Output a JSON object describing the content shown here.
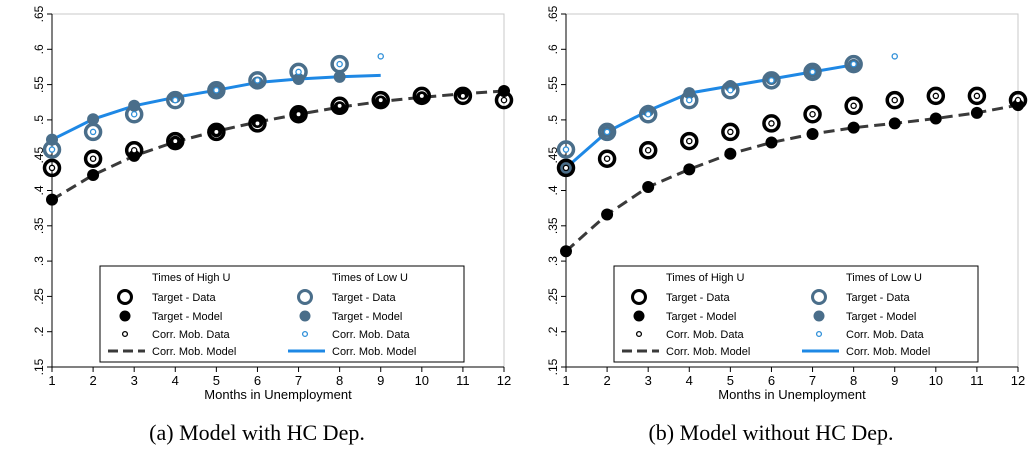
{
  "chart_data": [
    {
      "type": "line",
      "caption": "(a) Model with HC Dep.",
      "xlabel": "Months in Unemployment",
      "x_ticks": [
        "1",
        "2",
        "3",
        "4",
        "5",
        "6",
        "7",
        "8",
        "9",
        "10",
        "11",
        "12"
      ],
      "y_ticks": [
        ".15",
        ".2",
        ".25",
        ".3",
        ".35",
        ".4",
        ".45",
        ".5",
        ".55",
        ".6",
        ".65"
      ],
      "xlim": [
        1,
        12
      ],
      "ylim": [
        0.15,
        0.65
      ],
      "legend_position": "bottom-center",
      "legend": {
        "group_high": "Times of High U",
        "group_low": "Times of Low U",
        "high_target_data": "Target - Data",
        "high_target_model": "Target - Model",
        "high_corr_data": "Corr. Mob. Data",
        "high_corr_model": "Corr. Mob. Model",
        "low_target_data": "Target - Data",
        "low_target_model": "Target - Model",
        "low_corr_data": "Corr. Mob. Data",
        "low_corr_model": "Corr. Mob. Model"
      },
      "colors": {
        "high": "#000000",
        "high_line": "#3a3a3a",
        "low": "#4a6e8a",
        "low_corr": "#2f8fd8",
        "low_line": "#1e88e5"
      },
      "high": {
        "target_data": {
          "x": [
            1,
            2,
            3,
            4,
            5,
            6,
            7,
            8,
            9,
            10,
            11,
            12
          ],
          "y": [
            0.432,
            0.445,
            0.457,
            0.47,
            0.483,
            0.495,
            0.508,
            0.52,
            0.528,
            0.534,
            0.534,
            0.528
          ]
        },
        "target_model": {
          "x": [
            1,
            2,
            3,
            4,
            5,
            6,
            7,
            8,
            9,
            10,
            11,
            12
          ],
          "y": [
            0.387,
            0.422,
            0.449,
            0.469,
            0.484,
            0.497,
            0.508,
            0.518,
            0.526,
            0.532,
            0.537,
            0.541
          ]
        },
        "corr_data": {
          "x": [
            1,
            2,
            3,
            4,
            5,
            6,
            7,
            8,
            9,
            10,
            11,
            12
          ],
          "y": [
            0.432,
            0.445,
            0.457,
            0.47,
            0.483,
            0.495,
            0.508,
            0.52,
            0.528,
            0.534,
            0.534,
            0.528
          ]
        },
        "corr_model": {
          "x": [
            1,
            2,
            3,
            4,
            5,
            6,
            7,
            8,
            9,
            10,
            11,
            12
          ],
          "y": [
            0.387,
            0.422,
            0.449,
            0.469,
            0.484,
            0.497,
            0.508,
            0.518,
            0.526,
            0.532,
            0.537,
            0.541
          ]
        }
      },
      "low": {
        "target_data": {
          "x": [
            1,
            2,
            3,
            4,
            5,
            6,
            7,
            8
          ],
          "y": [
            0.458,
            0.483,
            0.508,
            0.528,
            0.542,
            0.556,
            0.568,
            0.579
          ]
        },
        "target_model": {
          "x": [
            1,
            2,
            3,
            4,
            5,
            6,
            7,
            8
          ],
          "y": [
            0.472,
            0.501,
            0.52,
            0.532,
            0.542,
            0.553,
            0.558,
            0.561
          ]
        },
        "corr_data": {
          "x": [
            1,
            2,
            3,
            4,
            5,
            6,
            7,
            8,
            9
          ],
          "y": [
            0.458,
            0.483,
            0.508,
            0.528,
            0.542,
            0.556,
            0.568,
            0.579,
            0.59
          ]
        },
        "corr_model": {
          "x": [
            1,
            2,
            3,
            4,
            5,
            6,
            7,
            8,
            9
          ],
          "y": [
            0.472,
            0.501,
            0.52,
            0.532,
            0.542,
            0.553,
            0.558,
            0.561,
            0.563
          ]
        }
      }
    },
    {
      "type": "line",
      "caption": "(b) Model without HC Dep.",
      "xlabel": "Months in Unemployment",
      "x_ticks": [
        "1",
        "2",
        "3",
        "4",
        "5",
        "6",
        "7",
        "8",
        "9",
        "10",
        "11",
        "12"
      ],
      "y_ticks": [
        ".15",
        ".2",
        ".25",
        ".3",
        ".35",
        ".4",
        ".45",
        ".5",
        ".55",
        ".6",
        ".65"
      ],
      "xlim": [
        1,
        12
      ],
      "ylim": [
        0.15,
        0.65
      ],
      "legend_position": "bottom-center",
      "legend": {
        "group_high": "Times of High U",
        "group_low": "Times of Low U",
        "high_target_data": "Target - Data",
        "high_target_model": "Target - Model",
        "high_corr_data": "Corr. Mob. Data",
        "high_corr_model": "Corr. Mob. Model",
        "low_target_data": "Target - Data",
        "low_target_model": "Target - Model",
        "low_corr_data": "Corr. Mob. Data",
        "low_corr_model": "Corr. Mob. Model"
      },
      "colors": {
        "high": "#000000",
        "high_line": "#3a3a3a",
        "low": "#4a6e8a",
        "low_corr": "#2f8fd8",
        "low_line": "#1e88e5"
      },
      "high": {
        "target_data": {
          "x": [
            1,
            2,
            3,
            4,
            5,
            6,
            7,
            8,
            9,
            10,
            11,
            12
          ],
          "y": [
            0.432,
            0.445,
            0.457,
            0.47,
            0.483,
            0.495,
            0.508,
            0.52,
            0.528,
            0.534,
            0.534,
            0.528
          ]
        },
        "target_model": {
          "x": [
            1,
            2,
            3,
            4,
            5,
            6,
            7,
            8,
            9,
            10,
            11,
            12
          ],
          "y": [
            0.314,
            0.366,
            0.405,
            0.43,
            0.452,
            0.468,
            0.48,
            0.489,
            0.495,
            0.502,
            0.51,
            0.521
          ]
        },
        "corr_data": {
          "x": [
            1,
            2,
            3,
            4,
            5,
            6,
            7,
            8,
            9,
            10,
            11,
            12
          ],
          "y": [
            0.432,
            0.445,
            0.457,
            0.47,
            0.483,
            0.495,
            0.508,
            0.52,
            0.528,
            0.534,
            0.534,
            0.528
          ]
        },
        "corr_model": {
          "x": [
            1,
            2,
            3,
            4,
            5,
            6,
            7,
            8,
            9,
            10,
            11,
            12
          ],
          "y": [
            0.314,
            0.366,
            0.405,
            0.43,
            0.452,
            0.468,
            0.48,
            0.489,
            0.495,
            0.502,
            0.51,
            0.521
          ]
        }
      },
      "low": {
        "target_data": {
          "x": [
            1,
            2,
            3,
            4,
            5,
            6,
            7,
            8
          ],
          "y": [
            0.458,
            0.483,
            0.508,
            0.528,
            0.542,
            0.556,
            0.568,
            0.579
          ]
        },
        "target_model": {
          "x": [
            1,
            2,
            3,
            4,
            5,
            6,
            7,
            8
          ],
          "y": [
            0.432,
            0.483,
            0.513,
            0.538,
            0.548,
            0.558,
            0.568,
            0.578
          ]
        },
        "corr_data": {
          "x": [
            1,
            2,
            3,
            4,
            5,
            6,
            7,
            8,
            9
          ],
          "y": [
            0.458,
            0.483,
            0.508,
            0.528,
            0.542,
            0.556,
            0.568,
            0.579,
            0.59
          ]
        },
        "corr_model": {
          "x": [
            1,
            2,
            3,
            4,
            5,
            6,
            7,
            8
          ],
          "y": [
            0.432,
            0.483,
            0.513,
            0.538,
            0.548,
            0.558,
            0.568,
            0.578
          ]
        }
      }
    }
  ]
}
